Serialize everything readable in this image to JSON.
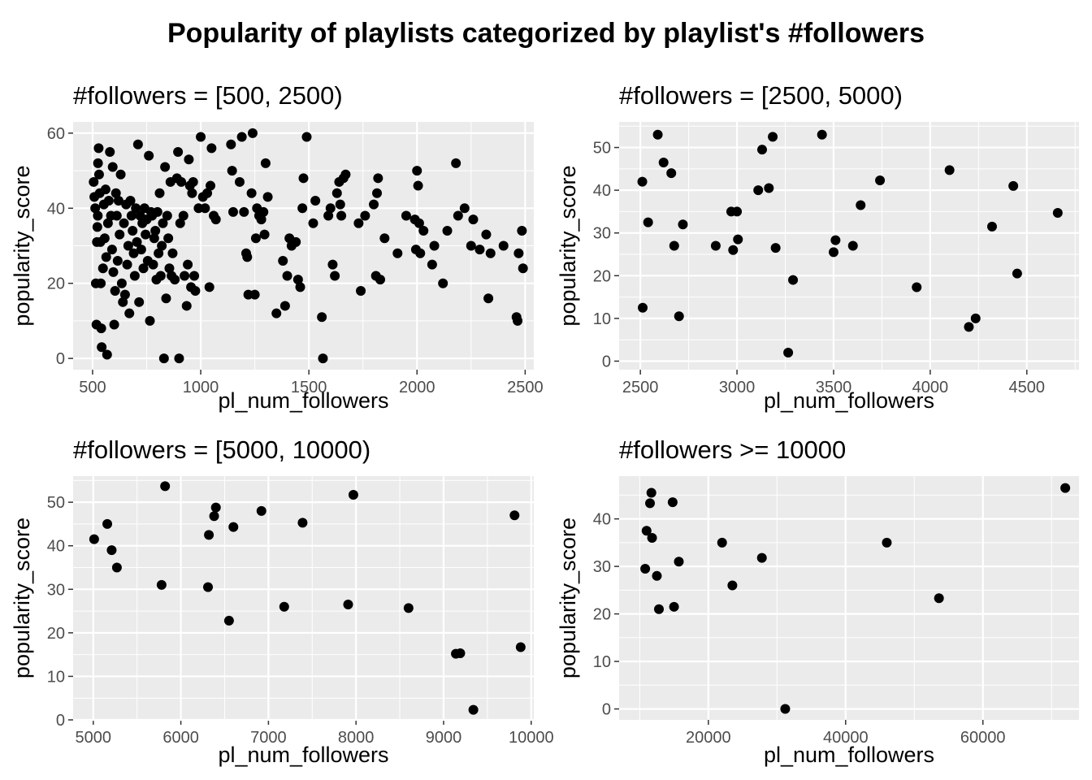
{
  "title": "Popularity of playlists categorized by playlist's #followers",
  "chart_data": [
    {
      "type": "scatter",
      "title": "#followers = [500, 2500)",
      "xlabel": "pl_num_followers",
      "ylabel": "popularity_score",
      "xlim": [
        410,
        2540
      ],
      "ylim": [
        -3,
        63
      ],
      "xticks": [
        500,
        1000,
        1500,
        2000,
        2500
      ],
      "yticks": [
        0,
        20,
        40,
        60
      ],
      "grid": true,
      "points": [
        [
          505,
          47
        ],
        [
          508,
          43
        ],
        [
          512,
          40
        ],
        [
          515,
          20
        ],
        [
          518,
          9
        ],
        [
          520,
          31
        ],
        [
          522,
          35
        ],
        [
          524,
          38
        ],
        [
          525,
          52
        ],
        [
          528,
          56
        ],
        [
          530,
          49
        ],
        [
          533,
          44
        ],
        [
          536,
          31
        ],
        [
          538,
          20
        ],
        [
          540,
          8
        ],
        [
          542,
          3
        ],
        [
          548,
          24
        ],
        [
          552,
          41
        ],
        [
          556,
          32
        ],
        [
          560,
          45
        ],
        [
          563,
          27
        ],
        [
          567,
          1
        ],
        [
          571,
          36
        ],
        [
          575,
          42
        ],
        [
          580,
          55
        ],
        [
          585,
          38
        ],
        [
          590,
          29
        ],
        [
          593,
          51
        ],
        [
          596,
          23
        ],
        [
          600,
          9
        ],
        [
          604,
          18
        ],
        [
          608,
          44
        ],
        [
          612,
          38
        ],
        [
          616,
          26
        ],
        [
          620,
          42
        ],
        [
          625,
          33
        ],
        [
          630,
          49
        ],
        [
          635,
          20
        ],
        [
          640,
          15
        ],
        [
          645,
          36
        ],
        [
          650,
          17
        ],
        [
          655,
          41
        ],
        [
          660,
          25
        ],
        [
          665,
          30
        ],
        [
          670,
          12
        ],
        [
          675,
          42
        ],
        [
          680,
          38
        ],
        [
          685,
          34
        ],
        [
          690,
          28
        ],
        [
          695,
          22
        ],
        [
          700,
          40
        ],
        [
          705,
          31
        ],
        [
          710,
          57
        ],
        [
          715,
          15
        ],
        [
          720,
          38
        ],
        [
          725,
          29
        ],
        [
          730,
          36
        ],
        [
          735,
          24
        ],
        [
          740,
          40
        ],
        [
          745,
          33
        ],
        [
          750,
          37
        ],
        [
          755,
          26
        ],
        [
          760,
          54
        ],
        [
          765,
          10
        ],
        [
          770,
          39
        ],
        [
          775,
          38
        ],
        [
          780,
          25
        ],
        [
          785,
          32
        ],
        [
          790,
          34
        ],
        [
          795,
          21
        ],
        [
          800,
          39
        ],
        [
          805,
          28
        ],
        [
          810,
          44
        ],
        [
          815,
          22
        ],
        [
          820,
          30
        ],
        [
          825,
          36
        ],
        [
          830,
          0
        ],
        [
          835,
          51
        ],
        [
          840,
          16
        ],
        [
          845,
          38
        ],
        [
          850,
          32
        ],
        [
          855,
          24
        ],
        [
          860,
          47
        ],
        [
          865,
          22
        ],
        [
          870,
          28
        ],
        [
          880,
          21
        ],
        [
          890,
          48
        ],
        [
          895,
          55
        ],
        [
          900,
          0
        ],
        [
          905,
          36
        ],
        [
          910,
          47
        ],
        [
          920,
          38
        ],
        [
          925,
          22
        ],
        [
          935,
          14
        ],
        [
          940,
          25
        ],
        [
          945,
          53
        ],
        [
          950,
          46
        ],
        [
          955,
          19
        ],
        [
          960,
          44
        ],
        [
          965,
          47
        ],
        [
          970,
          22
        ],
        [
          975,
          18
        ],
        [
          990,
          40
        ],
        [
          1000,
          59
        ],
        [
          1010,
          43
        ],
        [
          1020,
          40
        ],
        [
          1030,
          44
        ],
        [
          1040,
          19
        ],
        [
          1045,
          46
        ],
        [
          1050,
          56
        ],
        [
          1060,
          38
        ],
        [
          1070,
          37
        ],
        [
          1140,
          57
        ],
        [
          1145,
          50
        ],
        [
          1150,
          39
        ],
        [
          1180,
          47
        ],
        [
          1190,
          59
        ],
        [
          1200,
          39
        ],
        [
          1210,
          28
        ],
        [
          1215,
          27
        ],
        [
          1220,
          17
        ],
        [
          1235,
          44
        ],
        [
          1240,
          60
        ],
        [
          1250,
          17
        ],
        [
          1255,
          32
        ],
        [
          1260,
          40
        ],
        [
          1270,
          38
        ],
        [
          1280,
          37
        ],
        [
          1290,
          39
        ],
        [
          1295,
          33
        ],
        [
          1300,
          52
        ],
        [
          1310,
          43
        ],
        [
          1350,
          12
        ],
        [
          1380,
          26
        ],
        [
          1390,
          14
        ],
        [
          1400,
          22
        ],
        [
          1410,
          32
        ],
        [
          1420,
          30
        ],
        [
          1440,
          31
        ],
        [
          1450,
          21
        ],
        [
          1460,
          19
        ],
        [
          1470,
          40
        ],
        [
          1475,
          48
        ],
        [
          1490,
          59
        ],
        [
          1520,
          36
        ],
        [
          1530,
          42
        ],
        [
          1560,
          11
        ],
        [
          1565,
          0
        ],
        [
          1590,
          38
        ],
        [
          1600,
          40
        ],
        [
          1610,
          25
        ],
        [
          1620,
          22
        ],
        [
          1630,
          44
        ],
        [
          1640,
          47
        ],
        [
          1645,
          41
        ],
        [
          1650,
          38
        ],
        [
          1660,
          48
        ],
        [
          1670,
          49
        ],
        [
          1730,
          36
        ],
        [
          1740,
          18
        ],
        [
          1760,
          38
        ],
        [
          1800,
          41
        ],
        [
          1810,
          22
        ],
        [
          1815,
          44
        ],
        [
          1820,
          48
        ],
        [
          1830,
          21
        ],
        [
          1850,
          32
        ],
        [
          1910,
          28
        ],
        [
          1950,
          38
        ],
        [
          1990,
          37
        ],
        [
          1995,
          29
        ],
        [
          2000,
          50
        ],
        [
          2005,
          46
        ],
        [
          2010,
          36
        ],
        [
          2015,
          28
        ],
        [
          2030,
          34
        ],
        [
          2070,
          25
        ],
        [
          2080,
          30
        ],
        [
          2120,
          20
        ],
        [
          2140,
          34
        ],
        [
          2180,
          52
        ],
        [
          2190,
          38
        ],
        [
          2220,
          40
        ],
        [
          2250,
          30
        ],
        [
          2260,
          37
        ],
        [
          2290,
          29
        ],
        [
          2320,
          33
        ],
        [
          2330,
          16
        ],
        [
          2340,
          28
        ],
        [
          2400,
          30
        ],
        [
          2460,
          11
        ],
        [
          2465,
          10
        ],
        [
          2470,
          28
        ],
        [
          2485,
          34
        ],
        [
          2490,
          24
        ]
      ]
    },
    {
      "type": "scatter",
      "title": "#followers = [2500, 5000)",
      "xlabel": "pl_num_followers",
      "ylabel": "popularity_score",
      "xlim": [
        2390,
        4770
      ],
      "ylim": [
        -2,
        56
      ],
      "xticks": [
        2500,
        3000,
        3500,
        4000,
        4500
      ],
      "yticks": [
        0,
        10,
        20,
        30,
        40,
        50
      ],
      "grid": true,
      "points": [
        [
          2510,
          42
        ],
        [
          2512,
          12.5
        ],
        [
          2540,
          32.5
        ],
        [
          2590,
          53
        ],
        [
          2620,
          46.5
        ],
        [
          2660,
          44
        ],
        [
          2675,
          27
        ],
        [
          2700,
          10.5
        ],
        [
          2720,
          32
        ],
        [
          2890,
          27
        ],
        [
          2970,
          35
        ],
        [
          2980,
          26
        ],
        [
          3000,
          35
        ],
        [
          3005,
          28.5
        ],
        [
          3110,
          40
        ],
        [
          3130,
          49.5
        ],
        [
          3165,
          40.5
        ],
        [
          3185,
          52.5
        ],
        [
          3200,
          26.5
        ],
        [
          3265,
          2
        ],
        [
          3290,
          19
        ],
        [
          3440,
          53
        ],
        [
          3500,
          25.5
        ],
        [
          3510,
          28.3
        ],
        [
          3600,
          27
        ],
        [
          3640,
          36.5
        ],
        [
          3740,
          42.3
        ],
        [
          3930,
          17.3
        ],
        [
          4100,
          44.7
        ],
        [
          4200,
          8
        ],
        [
          4235,
          10
        ],
        [
          4320,
          31.5
        ],
        [
          4430,
          41
        ],
        [
          4450,
          20.5
        ],
        [
          4660,
          34.7
        ]
      ]
    },
    {
      "type": "scatter",
      "title": "#followers = [5000, 10000)",
      "xlabel": "pl_num_followers",
      "ylabel": "popularity_score",
      "xlim": [
        4770,
        10030
      ],
      "ylim": [
        0,
        56
      ],
      "xticks": [
        5000,
        6000,
        7000,
        8000,
        9000,
        10000
      ],
      "yticks": [
        0,
        10,
        20,
        30,
        40,
        50
      ],
      "grid": true,
      "points": [
        [
          5010,
          41.5
        ],
        [
          5160,
          45
        ],
        [
          5210,
          39
        ],
        [
          5270,
          35
        ],
        [
          5780,
          31
        ],
        [
          5820,
          53.7
        ],
        [
          6310,
          30.5
        ],
        [
          6320,
          42.5
        ],
        [
          6380,
          46.8
        ],
        [
          6400,
          48.8
        ],
        [
          6550,
          22.8
        ],
        [
          6600,
          44.3
        ],
        [
          6920,
          48
        ],
        [
          7180,
          26
        ],
        [
          7390,
          45.3
        ],
        [
          7910,
          26.5
        ],
        [
          7970,
          51.7
        ],
        [
          8600,
          25.7
        ],
        [
          9140,
          15.2
        ],
        [
          9190,
          15.3
        ],
        [
          9340,
          2.3
        ],
        [
          9810,
          47
        ],
        [
          9880,
          16.7
        ]
      ]
    },
    {
      "type": "scatter",
      "title": "#followers >= 10000",
      "xlabel": "pl_num_followers",
      "ylabel": "popularity_score",
      "xlim": [
        7000,
        74000
      ],
      "ylim": [
        -2.3,
        49
      ],
      "xticks": [
        20000,
        40000,
        60000
      ],
      "yticks": [
        0,
        10,
        20,
        30,
        40
      ],
      "grid": true,
      "points": [
        [
          10800,
          29.5
        ],
        [
          11000,
          37.5
        ],
        [
          11500,
          43.3
        ],
        [
          11700,
          45.5
        ],
        [
          11800,
          36
        ],
        [
          12500,
          28
        ],
        [
          12800,
          21
        ],
        [
          14800,
          43.5
        ],
        [
          15000,
          21.5
        ],
        [
          15700,
          31
        ],
        [
          22000,
          35
        ],
        [
          23500,
          26
        ],
        [
          27800,
          31.8
        ],
        [
          31200,
          0
        ],
        [
          46000,
          35
        ],
        [
          53600,
          23.3
        ],
        [
          72000,
          46.5
        ]
      ]
    }
  ]
}
